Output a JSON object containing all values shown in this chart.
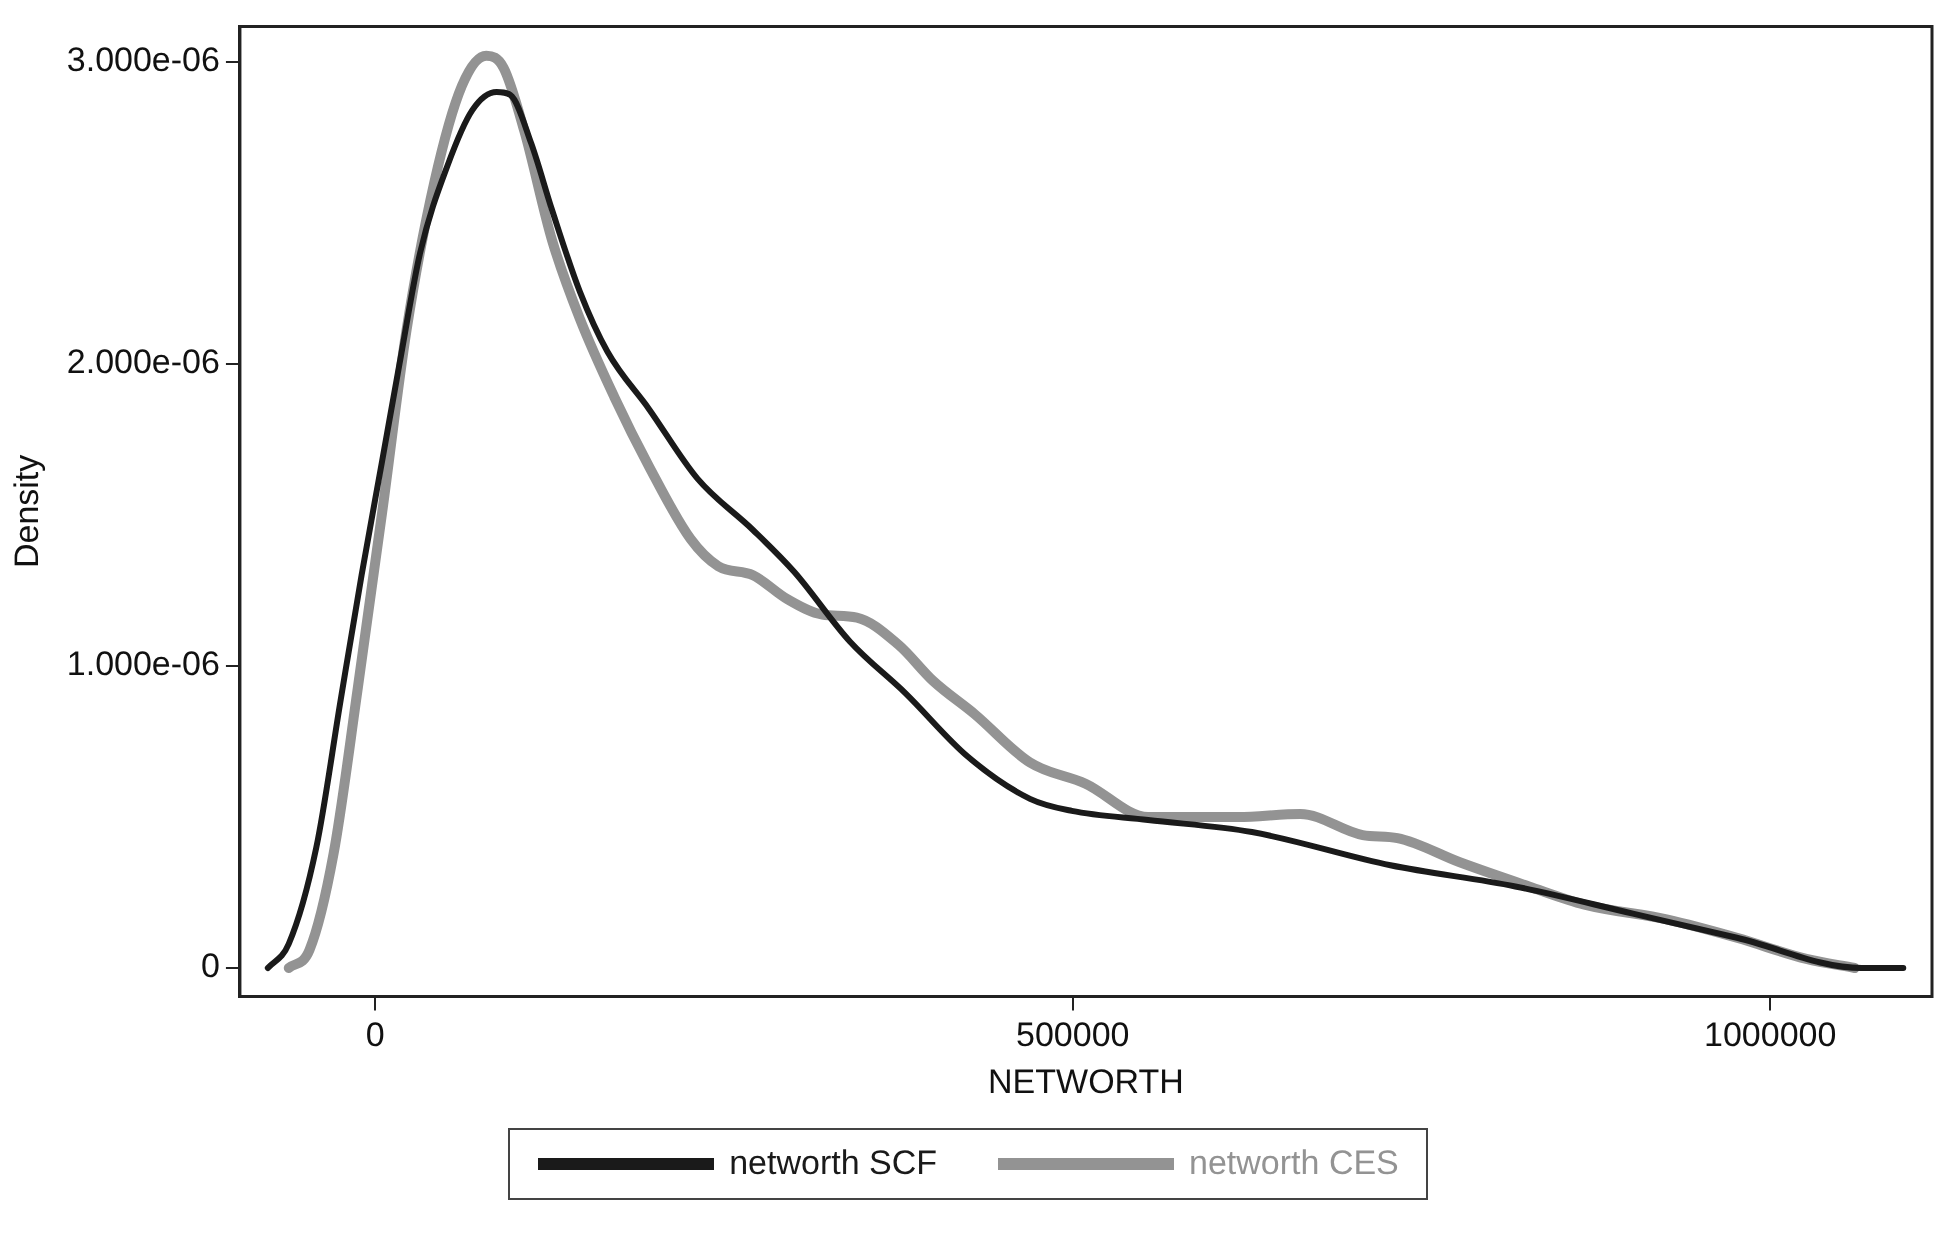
{
  "chart_data": {
    "type": "line",
    "xlabel": "NETWORTH",
    "ylabel": "Density",
    "xlim": [
      -97000,
      1116000
    ],
    "xticks": [
      0,
      500000,
      1000000
    ],
    "ylim": [
      -9.4e-08,
      3.117e-06
    ],
    "yticks": [
      {
        "value": 0,
        "label": "0"
      },
      {
        "value": 1e-06,
        "label": "1.000e-06"
      },
      {
        "value": 2e-06,
        "label": "2.000e-06"
      },
      {
        "value": 3e-06,
        "label": "3.000e-06"
      }
    ],
    "grid": false,
    "legend": "bottom",
    "marker": "none",
    "line_style": "solid",
    "series": [
      {
        "name": "networth SCF",
        "color": "#1a1a1a",
        "x": [
          -77000,
          -62000,
          -42200,
          -24700,
          -9800,
          5000,
          17400,
          32300,
          52100,
          69600,
          87000,
          96900,
          111800,
          126700,
          146600,
          166500,
          196300,
          231000,
          270800,
          300600,
          340400,
          380000,
          424700,
          469400,
          499300,
          554000,
          628500,
          727800,
          817300,
          901600,
          976100,
          1065600,
          1095400
        ],
        "values": [
          0,
          8e-08,
          4e-07,
          8.9e-07,
          1.3e-06,
          1.68e-06,
          2e-06,
          2.37e-06,
          2.66e-06,
          2.84e-06,
          2.9e-06,
          2.89e-06,
          2.73e-06,
          2.51e-06,
          2.24e-06,
          2.04e-06,
          1.85e-06,
          1.62e-06,
          1.45e-06,
          1.31e-06,
          1.08e-06,
          9.1e-07,
          7e-07,
          5.6e-07,
          5.2e-07,
          4.9e-07,
          4.5e-07,
          3.4e-07,
          2.7e-07,
          1.8e-07,
          1e-07,
          0,
          0
        ]
      },
      {
        "name": "networth CES",
        "color": "#939393",
        "x": [
          -62000,
          -47100,
          -29800,
          -12400,
          5000,
          22400,
          42300,
          62100,
          79600,
          92000,
          106900,
          126700,
          146600,
          171400,
          196300,
          226100,
          245900,
          270800,
          295700,
          320400,
          345300,
          375100,
          400000,
          429800,
          469400,
          509200,
          554000,
          618500,
          663200,
          707900,
          732800,
          777500,
          827100,
          866900,
          926500,
          976100,
          1025900,
          1060600
        ],
        "values": [
          0,
          6e-08,
          3.8e-07,
          9.3e-07,
          1.51e-06,
          2.11e-06,
          2.6e-06,
          2.92e-06,
          3.02e-06,
          2.98e-06,
          2.77e-06,
          2.41e-06,
          2.15e-06,
          1.89e-06,
          1.66e-06,
          1.42e-06,
          1.33e-06,
          1.3e-06,
          1.22e-06,
          1.17e-06,
          1.16e-06,
          1.07e-06,
          9.5e-07,
          8.4e-07,
          6.8e-07,
          6.1e-07,
          5e-07,
          5e-07,
          5.1e-07,
          4.4e-07,
          4.3e-07,
          3.5e-07,
          2.7e-07,
          2.1e-07,
          1.6e-07,
          1e-07,
          3e-08,
          0
        ]
      }
    ]
  }
}
